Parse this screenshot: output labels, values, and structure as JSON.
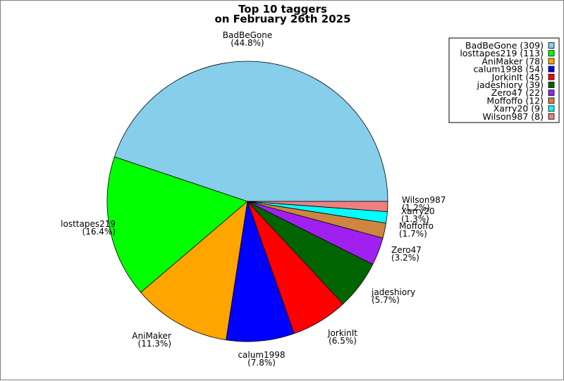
{
  "chart_data": {
    "type": "pie",
    "title": [
      "Top 10 taggers",
      "on February 26th 2025"
    ],
    "slices": [
      {
        "name": "BadBeGone",
        "value": 309,
        "pct": "(44.8%)",
        "legend": "BadBeGone (309)",
        "color": "#87ceeb"
      },
      {
        "name": "losttapes219",
        "value": 113,
        "pct": "(16.4%)",
        "legend": "losttapes219 (113)",
        "color": "#00ff00"
      },
      {
        "name": "AniMaker",
        "value": 78,
        "pct": "(11.3%)",
        "legend": "AniMaker (78)",
        "color": "#ffa500"
      },
      {
        "name": "calum1998",
        "value": 54,
        "pct": "(7.8%)",
        "legend": "calum1998 (54)",
        "color": "#0000ff"
      },
      {
        "name": "JorkinIt",
        "value": 45,
        "pct": "(6.5%)",
        "legend": "JorkinIt (45)",
        "color": "#ff0000"
      },
      {
        "name": "jadeshiory",
        "value": 39,
        "pct": "(5.7%)",
        "legend": "jadeshiory (39)",
        "color": "#006400"
      },
      {
        "name": "Zero47",
        "value": 22,
        "pct": "(3.2%)",
        "legend": "Zero47 (22)",
        "color": "#a020f0"
      },
      {
        "name": "Moffoffo",
        "value": 12,
        "pct": "(1.7%)",
        "legend": "Moffoffo (12)",
        "color": "#cd853f"
      },
      {
        "name": "Xarry20",
        "value": 9,
        "pct": "(1.3%)",
        "legend": "Xarry20 (9)",
        "color": "#00ffff"
      },
      {
        "name": "Wilson987",
        "value": 8,
        "pct": "(1.2%)",
        "legend": "Wilson987 (8)",
        "color": "#f08080"
      }
    ],
    "start_angle": "3 o'clock, counter-clockwise",
    "legend_position": "top-right",
    "labels_outside": true
  }
}
